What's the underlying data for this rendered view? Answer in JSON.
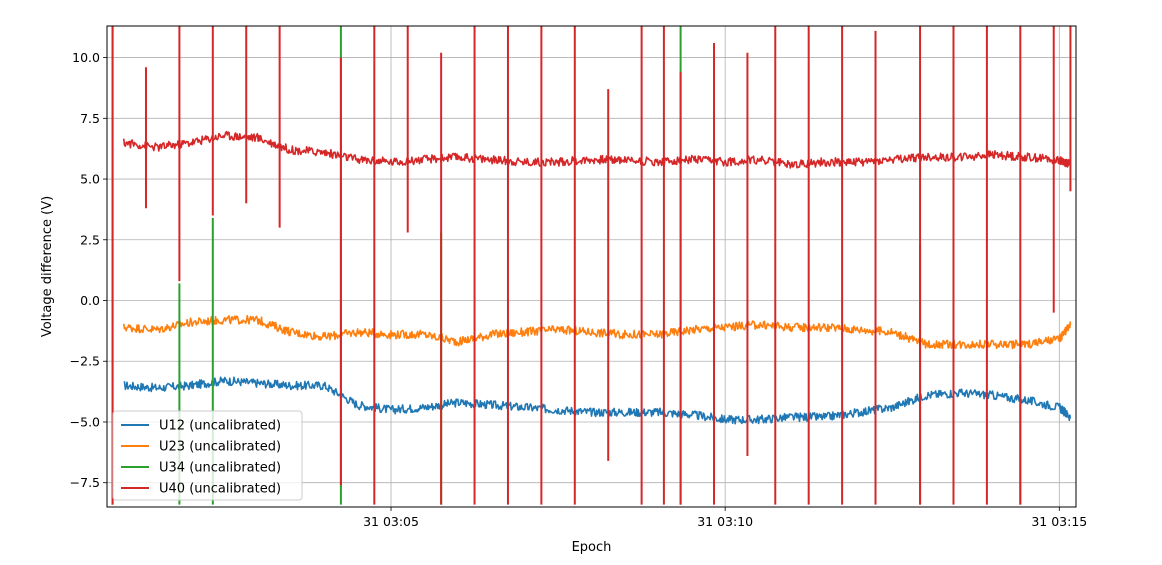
{
  "chart_data": {
    "type": "line",
    "title": "",
    "xlabel": "Epoch",
    "ylabel": "Voltage difference (V)",
    "x_unit": "minutes",
    "xlim": [
      "03:00:45",
      "03:15:15"
    ],
    "ylim": [
      -8.5,
      11.3
    ],
    "x_ticks": [
      {
        "x": "03:05:00",
        "label": "31 03:05"
      },
      {
        "x": "03:10:00",
        "label": "31 03:10"
      },
      {
        "x": "03:15:00",
        "label": "31 03:15"
      }
    ],
    "y_ticks": [
      {
        "y": 10.0,
        "label": "10.0"
      },
      {
        "y": 7.5,
        "label": "7.5"
      },
      {
        "y": 5.0,
        "label": "5.0"
      },
      {
        "y": 2.5,
        "label": "2.5"
      },
      {
        "y": 0.0,
        "label": "0.0"
      },
      {
        "y": -2.5,
        "label": "−2.5"
      },
      {
        "y": -5.0,
        "label": "−5.0"
      },
      {
        "y": -7.5,
        "label": "−7.5"
      }
    ],
    "grid": true,
    "legend_position": "lower-left",
    "series": [
      {
        "name": "U12 (uncalibrated)",
        "color": "#1f77b4",
        "x": [
          "03:01:00",
          "03:01:30",
          "03:02:00",
          "03:02:30",
          "03:03:00",
          "03:03:30",
          "03:04:00",
          "03:04:30",
          "03:05:00",
          "03:05:30",
          "03:06:00",
          "03:06:30",
          "03:07:00",
          "03:07:30",
          "03:08:00",
          "03:08:30",
          "03:09:00",
          "03:09:30",
          "03:10:00",
          "03:10:30",
          "03:11:00",
          "03:11:30",
          "03:12:00",
          "03:12:30",
          "03:13:00",
          "03:13:30",
          "03:14:00",
          "03:14:30",
          "03:15:00",
          "03:15:10"
        ],
        "values": [
          -3.5,
          -3.6,
          -3.5,
          -3.3,
          -3.4,
          -3.5,
          -3.5,
          -4.3,
          -4.5,
          -4.4,
          -4.2,
          -4.3,
          -4.4,
          -4.5,
          -4.6,
          -4.6,
          -4.6,
          -4.7,
          -4.9,
          -4.9,
          -4.8,
          -4.8,
          -4.6,
          -4.4,
          -3.9,
          -3.8,
          -3.9,
          -4.1,
          -4.4,
          -4.8
        ]
      },
      {
        "name": "U23 (uncalibrated)",
        "color": "#ff7f0e",
        "x": [
          "03:01:00",
          "03:01:30",
          "03:02:00",
          "03:02:30",
          "03:03:00",
          "03:03:30",
          "03:04:00",
          "03:04:30",
          "03:05:00",
          "03:05:30",
          "03:06:00",
          "03:06:30",
          "03:07:00",
          "03:07:30",
          "03:08:00",
          "03:08:30",
          "03:09:00",
          "03:09:30",
          "03:10:00",
          "03:10:30",
          "03:11:00",
          "03:11:30",
          "03:12:00",
          "03:12:30",
          "03:13:00",
          "03:13:30",
          "03:14:00",
          "03:14:30",
          "03:15:00",
          "03:15:10"
        ],
        "values": [
          -1.1,
          -1.2,
          -0.9,
          -0.8,
          -0.8,
          -1.3,
          -1.5,
          -1.3,
          -1.4,
          -1.4,
          -1.7,
          -1.4,
          -1.3,
          -1.2,
          -1.3,
          -1.4,
          -1.4,
          -1.2,
          -1.1,
          -1.0,
          -1.1,
          -1.1,
          -1.2,
          -1.3,
          -1.8,
          -1.8,
          -1.8,
          -1.8,
          -1.6,
          -1.0
        ]
      },
      {
        "name": "U34 (uncalibrated)",
        "color": "#2ca02c",
        "x": [],
        "values": [],
        "spikes": [
          {
            "x": "03:00:50",
            "low": -8.4,
            "high": 11.3
          },
          {
            "x": "03:01:50",
            "low": -8.4,
            "high": 0.7
          },
          {
            "x": "03:02:20",
            "low": -8.4,
            "high": 3.4
          },
          {
            "x": "03:04:15",
            "low": -8.4,
            "high": 11.3
          },
          {
            "x": "03:05:45",
            "low": -8.4,
            "high": 2.8
          },
          {
            "x": "03:09:20",
            "low": -8.4,
            "high": 11.3
          },
          {
            "x": "03:12:55",
            "low": -8.4,
            "high": 2.3
          },
          {
            "x": "03:14:25",
            "low": -8.4,
            "high": -2.6
          }
        ]
      },
      {
        "name": "U40 (uncalibrated)",
        "color": "#d62728",
        "x": [
          "03:01:00",
          "03:01:30",
          "03:02:00",
          "03:02:30",
          "03:03:00",
          "03:03:30",
          "03:04:00",
          "03:04:30",
          "03:05:00",
          "03:05:30",
          "03:06:00",
          "03:06:30",
          "03:07:00",
          "03:07:30",
          "03:08:00",
          "03:08:30",
          "03:09:00",
          "03:09:30",
          "03:10:00",
          "03:10:30",
          "03:11:00",
          "03:11:30",
          "03:12:00",
          "03:12:30",
          "03:13:00",
          "03:13:30",
          "03:14:00",
          "03:14:30",
          "03:15:00",
          "03:15:10"
        ],
        "values": [
          6.5,
          6.3,
          6.5,
          6.8,
          6.7,
          6.2,
          6.1,
          5.8,
          5.7,
          5.8,
          5.9,
          5.8,
          5.7,
          5.7,
          5.8,
          5.8,
          5.7,
          5.8,
          5.7,
          5.8,
          5.6,
          5.7,
          5.7,
          5.8,
          5.9,
          5.9,
          6.0,
          5.9,
          5.8,
          5.6
        ],
        "spikes": [
          {
            "x": "03:00:50",
            "low": -8.4,
            "high": 11.3
          },
          {
            "x": "03:01:20",
            "low": 3.8,
            "high": 9.6
          },
          {
            "x": "03:01:50",
            "low": 0.8,
            "high": 11.3
          },
          {
            "x": "03:02:20",
            "low": 3.5,
            "high": 11.3
          },
          {
            "x": "03:02:50",
            "low": 4.0,
            "high": 11.3
          },
          {
            "x": "03:03:20",
            "low": 3.0,
            "high": 11.3
          },
          {
            "x": "03:04:15",
            "low": -7.6,
            "high": 10.0
          },
          {
            "x": "03:04:45",
            "low": -8.4,
            "high": 11.3
          },
          {
            "x": "03:05:15",
            "low": 2.8,
            "high": 11.3
          },
          {
            "x": "03:05:45",
            "low": -8.4,
            "high": 10.2
          },
          {
            "x": "03:06:15",
            "low": -8.4,
            "high": 11.3
          },
          {
            "x": "03:06:45",
            "low": -8.4,
            "high": 11.3
          },
          {
            "x": "03:07:15",
            "low": -8.4,
            "high": 11.3
          },
          {
            "x": "03:07:45",
            "low": -8.4,
            "high": 11.3
          },
          {
            "x": "03:08:15",
            "low": -6.6,
            "high": 8.7
          },
          {
            "x": "03:08:45",
            "low": -8.4,
            "high": 11.3
          },
          {
            "x": "03:09:05",
            "low": -8.4,
            "high": 11.3
          },
          {
            "x": "03:09:20",
            "low": -8.4,
            "high": 9.4
          },
          {
            "x": "03:09:50",
            "low": -8.4,
            "high": 10.6
          },
          {
            "x": "03:10:20",
            "low": -6.4,
            "high": 10.2
          },
          {
            "x": "03:10:45",
            "low": -8.4,
            "high": 11.3
          },
          {
            "x": "03:11:15",
            "low": -8.4,
            "high": 11.3
          },
          {
            "x": "03:11:45",
            "low": -8.4,
            "high": 11.3
          },
          {
            "x": "03:12:15",
            "low": -8.4,
            "high": 11.1
          },
          {
            "x": "03:12:55",
            "low": -8.4,
            "high": 11.3
          },
          {
            "x": "03:13:25",
            "low": -8.4,
            "high": 11.3
          },
          {
            "x": "03:13:55",
            "low": -8.4,
            "high": 11.3
          },
          {
            "x": "03:14:25",
            "low": -8.4,
            "high": 11.3
          },
          {
            "x": "03:14:55",
            "low": -0.5,
            "high": 11.3
          },
          {
            "x": "03:15:10",
            "low": 4.5,
            "high": 11.3
          }
        ]
      }
    ]
  }
}
